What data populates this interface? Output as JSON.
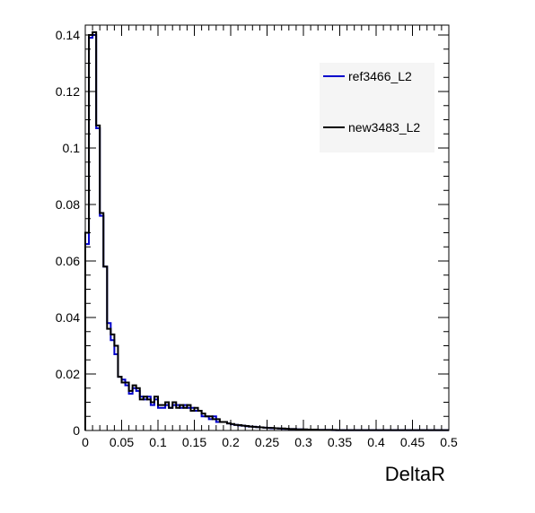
{
  "chart_data": {
    "type": "line",
    "title": "",
    "xlabel": "DeltaR",
    "ylabel": "",
    "xlim": [
      0,
      0.5
    ],
    "ylim": [
      0,
      0.14
    ],
    "x_ticks": [
      "0",
      "0.05",
      "0.1",
      "0.15",
      "0.2",
      "0.25",
      "0.3",
      "0.35",
      "0.4",
      "0.45",
      "0.5"
    ],
    "y_ticks": [
      "0",
      "0.02",
      "0.04",
      "0.06",
      "0.08",
      "0.1",
      "0.12",
      "0.14"
    ],
    "bin_edges": [
      0,
      0.005,
      0.01,
      0.015,
      0.02,
      0.025,
      0.03,
      0.035,
      0.04,
      0.045,
      0.05,
      0.055,
      0.06,
      0.065,
      0.07,
      0.075,
      0.08,
      0.085,
      0.09,
      0.095,
      0.1,
      0.105,
      0.11,
      0.115,
      0.12,
      0.125,
      0.13,
      0.135,
      0.14,
      0.145,
      0.15,
      0.155,
      0.16,
      0.165,
      0.17,
      0.175,
      0.18,
      0.185,
      0.19,
      0.195,
      0.2,
      0.205,
      0.21,
      0.215,
      0.22,
      0.225,
      0.23,
      0.235,
      0.24,
      0.245,
      0.25,
      0.255,
      0.26,
      0.265,
      0.27,
      0.275,
      0.28,
      0.285,
      0.29,
      0.295,
      0.3,
      0.305,
      0.31,
      0.315,
      0.32,
      0.325,
      0.33,
      0.335,
      0.34,
      0.345,
      0.35,
      0.355,
      0.36,
      0.365,
      0.37,
      0.375,
      0.38,
      0.385,
      0.39,
      0.395,
      0.4,
      0.405,
      0.41,
      0.415,
      0.42,
      0.425,
      0.43,
      0.435,
      0.44,
      0.445,
      0.45,
      0.455,
      0.46,
      0.465,
      0.47,
      0.475,
      0.48,
      0.485,
      0.49,
      0.495,
      0.5
    ],
    "series": [
      {
        "name": "ref3466_L2",
        "color": "#0000cc",
        "values": [
          0.066,
          0.139,
          0.14,
          0.107,
          0.076,
          0.058,
          0.038,
          0.032,
          0.027,
          0.019,
          0.018,
          0.016,
          0.013,
          0.015,
          0.014,
          0.012,
          0.011,
          0.012,
          0.009,
          0.011,
          0.008,
          0.008,
          0.009,
          0.008,
          0.009,
          0.009,
          0.008,
          0.009,
          0.008,
          0.008,
          0.007,
          0.007,
          0.005,
          0.005,
          0.004,
          0.005,
          0.003,
          0.003,
          0.003,
          0.0025,
          0.0022,
          0.002,
          0.0018,
          0.0017,
          0.0015,
          0.0014,
          0.0013,
          0.0012,
          0.0011,
          0.001,
          0.0009,
          0.0008,
          0.0008,
          0.0007,
          0.0006,
          0.0006,
          0.0005,
          0.0005,
          0.0004,
          0.0004,
          0.0003,
          0.0003,
          0.0003,
          0.0002,
          0.0002,
          0.0002,
          0.0002,
          0.0002,
          0.0001,
          0.0001,
          0.0001,
          0.0001,
          0.0001,
          0.0001,
          0.0001,
          0.0001,
          0.0001,
          0.0001,
          0.0001,
          0.0001,
          0.0001,
          0.0001,
          0.0001,
          0.0001,
          0.0001,
          0.0001,
          0.0001,
          0.0001,
          0.0001,
          0.0001,
          0.0001,
          0.0001,
          0.0001,
          0.0001,
          0.0001,
          0.0001,
          0.0001,
          0.0001,
          0.0001,
          0.0001
        ]
      },
      {
        "name": "new3483_L2",
        "color": "#000000",
        "values": [
          0.07,
          0.14,
          0.141,
          0.108,
          0.077,
          0.058,
          0.036,
          0.034,
          0.03,
          0.019,
          0.017,
          0.017,
          0.014,
          0.016,
          0.015,
          0.011,
          0.012,
          0.011,
          0.01,
          0.012,
          0.009,
          0.009,
          0.01,
          0.008,
          0.01,
          0.008,
          0.009,
          0.008,
          0.009,
          0.007,
          0.008,
          0.007,
          0.006,
          0.005,
          0.005,
          0.004,
          0.004,
          0.003,
          0.003,
          0.0025,
          0.0023,
          0.002,
          0.0019,
          0.0017,
          0.0016,
          0.0014,
          0.0013,
          0.0012,
          0.0011,
          0.001,
          0.0009,
          0.0009,
          0.0008,
          0.0007,
          0.0007,
          0.0006,
          0.0005,
          0.0005,
          0.0004,
          0.0004,
          0.0004,
          0.0003,
          0.0003,
          0.0003,
          0.0002,
          0.0002,
          0.0002,
          0.0002,
          0.0002,
          0.0001,
          0.0001,
          0.0001,
          0.0001,
          0.0001,
          0.0001,
          0.0001,
          0.0001,
          0.0001,
          0.0001,
          0.0001,
          0.0001,
          0.0001,
          0.0001,
          0.0001,
          0.0001,
          0.0001,
          0.0001,
          0.0001,
          0.0001,
          0.0001,
          0.0001,
          0.0001,
          0.0001,
          0.0001,
          0.0001,
          0.0001,
          0.0001,
          0.0001,
          0.0001,
          0.0001
        ]
      }
    ],
    "legend_position": "top-right",
    "grid": false
  }
}
